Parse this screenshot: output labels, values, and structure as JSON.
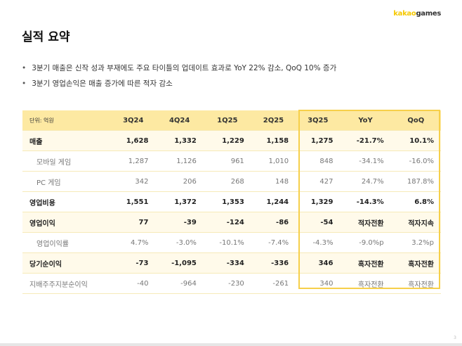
{
  "logo": {
    "part1": "kakao",
    "part2": "games"
  },
  "title": "실적 요약",
  "bullets": [
    "3분기 매출은 신작 성과 부재에도 주요 타이틀의 업데이트 효과로 YoY 22% 감소, QoQ 10% 증가",
    "3분기 영업손익은 매출 증가에 따른 적자 감소"
  ],
  "table": {
    "unit": "단위: 억원",
    "columns": [
      "3Q24",
      "4Q24",
      "1Q25",
      "2Q25",
      "3Q25",
      "YoY",
      "QoQ"
    ],
    "rows": [
      {
        "label": "매출",
        "values": [
          "1,628",
          "1,332",
          "1,229",
          "1,158",
          "1,275",
          "-21.7%",
          "10.1%"
        ]
      },
      {
        "label": "모바일 게임",
        "values": [
          "1,287",
          "1,126",
          "961",
          "1,010",
          "848",
          "-34.1%",
          "-16.0%"
        ]
      },
      {
        "label": "PC 게임",
        "values": [
          "342",
          "206",
          "268",
          "148",
          "427",
          "24.7%",
          "187.8%"
        ]
      },
      {
        "label": "영업비용",
        "values": [
          "1,551",
          "1,372",
          "1,353",
          "1,244",
          "1,329",
          "-14.3%",
          "6.8%"
        ]
      },
      {
        "label": "영업이익",
        "values": [
          "77",
          "-39",
          "-124",
          "-86",
          "-54",
          "적자전환",
          "적자지속"
        ]
      },
      {
        "label": "영업이익률",
        "values": [
          "4.7%",
          "-3.0%",
          "-10.1%",
          "-7.4%",
          "-4.3%",
          "-9.0%p",
          "3.2%p"
        ]
      },
      {
        "label": "당기순이익",
        "values": [
          "-73",
          "-1,095",
          "-334",
          "-336",
          "346",
          "흑자전환",
          "흑자전환"
        ]
      },
      {
        "label": "지배주주지분순이익",
        "values": [
          "-40",
          "-964",
          "-230",
          "-261",
          "340",
          "흑자전환",
          "흑자전환"
        ]
      }
    ]
  },
  "page_number": "3",
  "colors": {
    "header": "#fde9a2",
    "highlight_row": "#fffaea",
    "box_border": "#f6cf4a",
    "brand_yellow": "#f5c800"
  }
}
